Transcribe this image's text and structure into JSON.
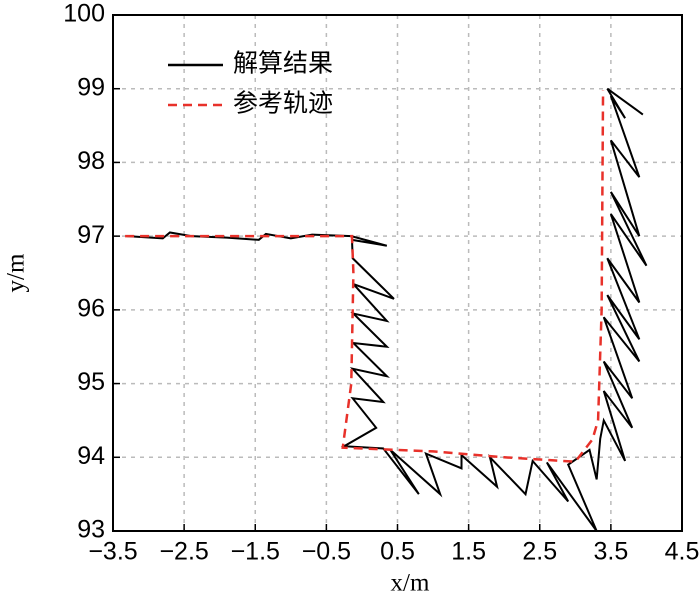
{
  "chart_data": {
    "type": "line",
    "xlabel": "x/m",
    "ylabel": "y/m",
    "xlim": [
      -3.5,
      4.5
    ],
    "ylim": [
      93,
      100
    ],
    "xticks": [
      {
        "value": -3.5,
        "label": "−3.5"
      },
      {
        "value": -2.5,
        "label": "−2.5"
      },
      {
        "value": -1.5,
        "label": "−1.5"
      },
      {
        "value": -0.5,
        "label": "−0.5"
      },
      0.5,
      1.5,
      2.5,
      3.5,
      4.5
    ],
    "yticks": [
      93,
      94,
      95,
      96,
      97,
      98,
      99,
      100
    ],
    "grid": true,
    "legend": "upper left",
    "series": [
      {
        "name": "解算结果",
        "color": "#000000",
        "style": "solid",
        "x": [
          -3.3,
          -2.8,
          -2.7,
          -2.4,
          -1.9,
          -1.45,
          -1.35,
          -1.0,
          -0.7,
          -0.15,
          0.35,
          -0.14,
          -0.13,
          0.45,
          -0.12,
          0.35,
          -0.12,
          0.35,
          -0.12,
          0.35,
          -0.13,
          0.3,
          -0.13,
          0.2,
          -0.25,
          0.3,
          0.8,
          0.4,
          1.1,
          0.9,
          1.4,
          1.4,
          1.9,
          1.8,
          2.3,
          2.4,
          2.9,
          2.6,
          3.3,
          2.9,
          3.2,
          3.3,
          3.35,
          3.4,
          3.7,
          3.4,
          3.8,
          3.4,
          3.8,
          3.4,
          3.9,
          3.45,
          3.9,
          3.45,
          3.9,
          3.5,
          4.0,
          3.5,
          3.9,
          3.5,
          3.9,
          3.5,
          3.7,
          3.45,
          3.95
        ],
        "values": [
          97.0,
          96.97,
          97.05,
          97.0,
          96.98,
          96.95,
          97.03,
          96.97,
          97.02,
          97.0,
          96.87,
          96.95,
          96.7,
          96.15,
          96.35,
          95.85,
          95.95,
          95.5,
          95.55,
          95.1,
          95.2,
          94.75,
          94.8,
          94.4,
          94.15,
          94.12,
          93.5,
          94.1,
          93.5,
          94.05,
          93.85,
          94.03,
          93.6,
          94.0,
          93.5,
          93.95,
          93.4,
          93.93,
          93.0,
          93.9,
          94.1,
          93.7,
          94.25,
          94.5,
          93.95,
          94.9,
          94.4,
          95.3,
          94.8,
          95.9,
          95.3,
          96.2,
          95.6,
          96.7,
          96.1,
          97.3,
          96.6,
          97.6,
          97.0,
          98.3,
          97.8,
          98.9,
          98.6,
          99.0,
          98.65
        ]
      },
      {
        "name": "参考轨迹",
        "color": "#e8312a",
        "style": "dashed",
        "x": [
          -3.33,
          -0.14,
          -0.12,
          -0.15,
          -0.27,
          1.0,
          2.0,
          3.0,
          3.24,
          3.32,
          3.37,
          3.39
        ],
        "values": [
          97.0,
          97.0,
          96.5,
          95.0,
          94.13,
          94.08,
          94.0,
          93.94,
          94.24,
          94.5,
          96.0,
          98.98
        ]
      }
    ]
  }
}
